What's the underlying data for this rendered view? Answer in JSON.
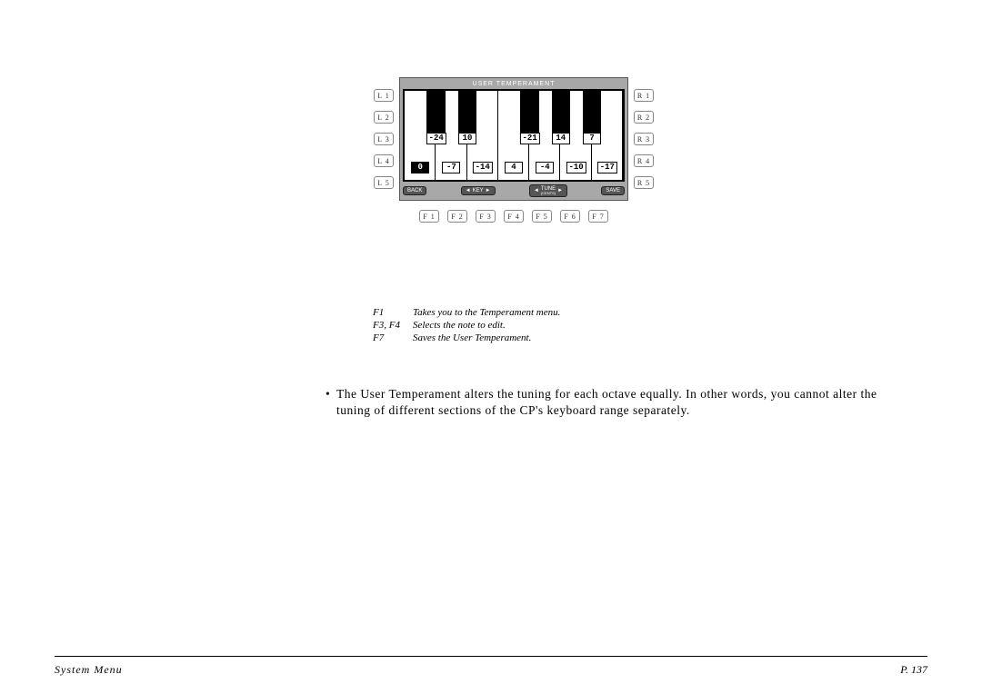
{
  "lcd": {
    "title": "USER TEMPERAMENT",
    "black_values": [
      "-24",
      "10",
      "-21",
      "14",
      "7"
    ],
    "white_values": [
      "0",
      "-7",
      "-14",
      "4",
      "-4",
      "-10",
      "-17"
    ],
    "selected_white_index": 0,
    "black_value_color": "#000000",
    "white_value_color": "#000000",
    "bg_color": "#a8a8a8",
    "softkeys": {
      "back": "BACK",
      "key": "KEY",
      "tune": "TUNE",
      "tune_sub": "(CENTS)",
      "save": "SAVE"
    }
  },
  "side_left": [
    "L 1",
    "L 2",
    "L 3",
    "L 4",
    "L 5"
  ],
  "side_right": [
    "R 1",
    "R 2",
    "R 3",
    "R 4",
    "R 5"
  ],
  "fkeys": [
    "F 1",
    "F 2",
    "F 3",
    "F 4",
    "F 5",
    "F 6",
    "F 7"
  ],
  "legend": [
    {
      "k": "F1",
      "d": "Takes you to the Temperament menu."
    },
    {
      "k": "F3, F4",
      "d": "Selects the note to edit."
    },
    {
      "k": "F7",
      "d": "Saves the User Temperament."
    }
  ],
  "body": "The User Temperament alters the tuning for each octave equally.  In other words, you cannot alter the tuning of different sections of the CP's keyboard range separately.",
  "footer": {
    "section": "System Menu",
    "page": "P. 137"
  },
  "keyboard_layout": {
    "white_count": 7,
    "black_positions_pct": [
      10.2,
      24.5,
      53.1,
      67.3,
      81.6
    ],
    "black_width_pct": 8.5,
    "black_row_top_pct": 47,
    "white_row_top_pct": 80
  }
}
